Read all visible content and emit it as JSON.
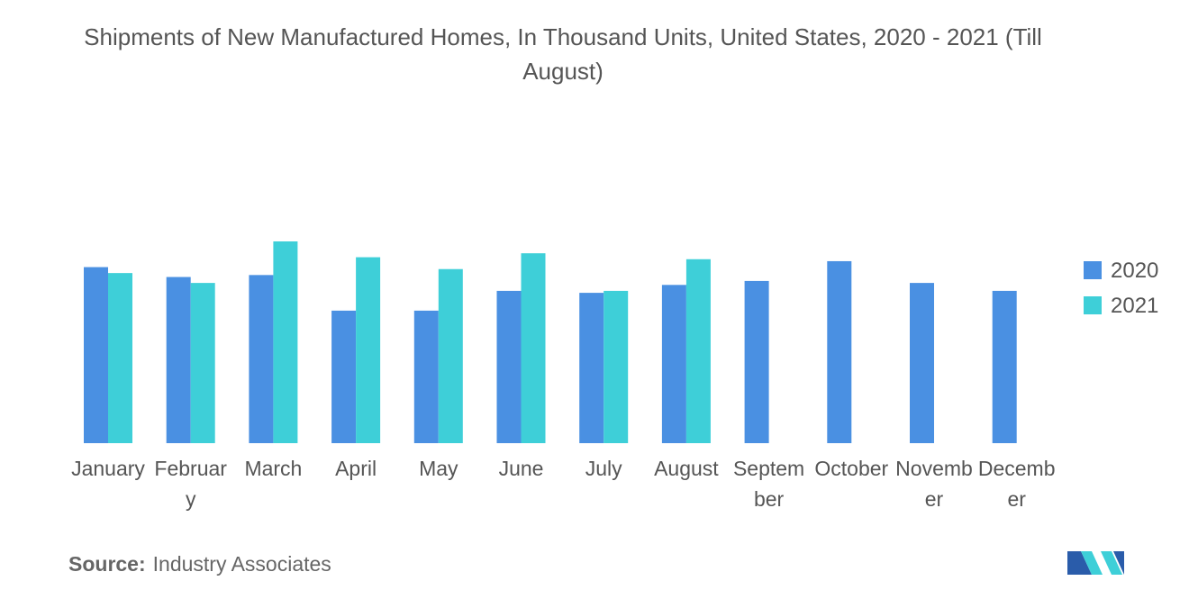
{
  "chart_data": {
    "type": "bar",
    "title": "Shipments of New Manufactured Homes, In Thousand Units, United States, 2020 - 2021 (Till August)",
    "categories": [
      "January",
      "February",
      "March",
      "April",
      "May",
      "June",
      "July",
      "August",
      "September",
      "October",
      "November",
      "December"
    ],
    "series": [
      {
        "name": "2020",
        "color": "#4a90e2",
        "values": [
          8.9,
          8.4,
          8.5,
          6.7,
          6.7,
          7.7,
          7.6,
          8.0,
          8.2,
          9.2,
          8.1,
          7.7
        ]
      },
      {
        "name": "2021",
        "color": "#3ecfd8",
        "values": [
          8.6,
          8.1,
          10.2,
          9.4,
          8.8,
          9.6,
          7.7,
          9.3,
          null,
          null,
          null,
          null
        ]
      }
    ],
    "legend": "right"
  },
  "source": {
    "label": "Source:",
    "text": "Industry Associates"
  }
}
